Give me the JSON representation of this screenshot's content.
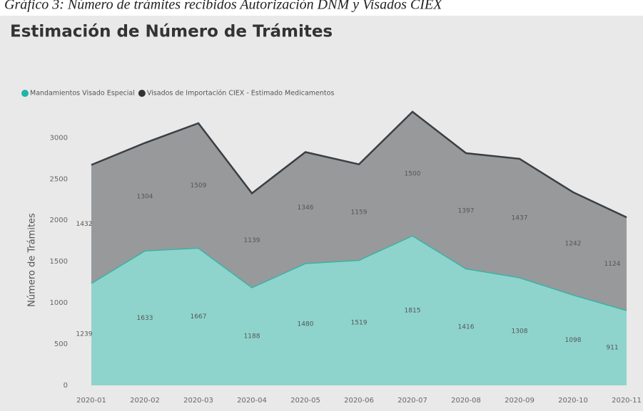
{
  "caption": "Gráfico 3: Número de trámites recibidos Autorización DNM y Visados CIEX",
  "chart_data": {
    "type": "stacked_area",
    "title": "Estimación de Número de Trámites",
    "y_label": "Número de Trámites",
    "categories": [
      "2020-01",
      "2020-02",
      "2020-03",
      "2020-04",
      "2020-05",
      "2020-06",
      "2020-07",
      "2020-08",
      "2020-09",
      "2020-10",
      "2020-11"
    ],
    "series": [
      {
        "name": "Mandamientos Visado Especial",
        "color": "#8ed4cc",
        "line_color": "#2fb4a6",
        "legend_color": "#1fb5a8",
        "values": [
          1239,
          1633,
          1667,
          1188,
          1480,
          1519,
          1815,
          1416,
          1308,
          1098,
          911
        ]
      },
      {
        "name": "Visados de Importación CIEX - Estimado Medicamentos",
        "color": "#97999b",
        "line_color": "#3a3f44",
        "legend_color": "#2f3336",
        "values": [
          1432,
          1304,
          1509,
          1139,
          1346,
          1159,
          1500,
          1397,
          1437,
          1242,
          1124
        ]
      }
    ],
    "ylim": [
      0,
      3400
    ],
    "yticks": [
      0,
      500,
      1000,
      1500,
      2000,
      2500,
      3000
    ],
    "grid": false,
    "legend": "top-left"
  }
}
